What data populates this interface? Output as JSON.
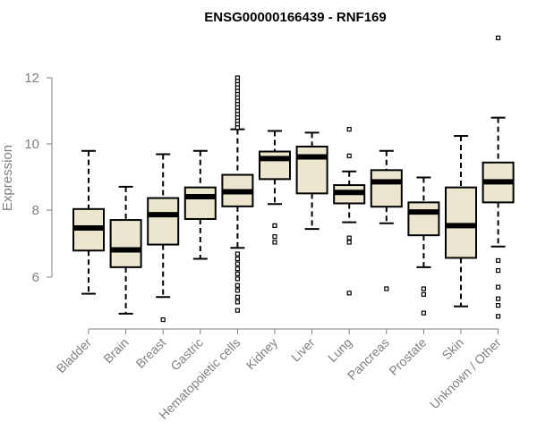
{
  "chart_data": {
    "type": "box",
    "title": "ENSG00000166439 - RNF169",
    "xlabel": "",
    "ylabel": "Expression",
    "ylim": [
      4.4,
      13.4
    ],
    "yticks": [
      "6",
      "8",
      "10",
      "12"
    ],
    "grid": false,
    "box_fill": "#ede6cf",
    "categories": [
      "Bladder",
      "Brain",
      "Breast",
      "Gastric",
      "Hematopoietic cells",
      "Kidney",
      "Liver",
      "Lung",
      "Pancreas",
      "Prostate",
      "Skin",
      "Unknown / Other"
    ],
    "boxes": [
      {
        "min": 5.5,
        "q1": 6.8,
        "median": 7.48,
        "q3": 8.05,
        "max": 9.8,
        "outliers": []
      },
      {
        "min": 4.9,
        "q1": 6.3,
        "median": 6.82,
        "q3": 7.72,
        "max": 8.72,
        "outliers": []
      },
      {
        "min": 5.4,
        "q1": 6.98,
        "median": 7.88,
        "q3": 8.38,
        "max": 9.7,
        "outliers": [
          4.72
        ]
      },
      {
        "min": 6.55,
        "q1": 7.75,
        "median": 8.42,
        "q3": 8.7,
        "max": 9.8,
        "outliers": []
      },
      {
        "min": 6.88,
        "q1": 8.13,
        "median": 8.57,
        "q3": 9.08,
        "max": 10.45,
        "outliers": [
          12.0,
          11.9,
          11.8,
          11.7,
          11.6,
          11.5,
          11.4,
          11.3,
          11.2,
          11.1,
          11.0,
          10.9,
          10.8,
          10.7,
          10.6,
          10.5,
          6.7,
          6.55,
          6.4,
          6.25,
          6.1,
          5.95,
          5.75,
          5.6,
          5.4,
          5.25,
          5.0
        ]
      },
      {
        "min": 8.2,
        "q1": 8.95,
        "median": 9.57,
        "q3": 9.78,
        "max": 10.4,
        "outliers": [
          7.55,
          7.22,
          7.05
        ]
      },
      {
        "min": 7.45,
        "q1": 8.52,
        "median": 9.62,
        "q3": 9.93,
        "max": 10.35,
        "outliers": []
      },
      {
        "min": 7.65,
        "q1": 8.22,
        "median": 8.55,
        "q3": 8.77,
        "max": 9.18,
        "outliers": [
          10.45,
          9.65,
          7.18,
          7.05,
          5.52
        ]
      },
      {
        "min": 7.62,
        "q1": 8.12,
        "median": 8.87,
        "q3": 9.22,
        "max": 9.8,
        "outliers": [
          5.65
        ]
      },
      {
        "min": 6.3,
        "q1": 7.26,
        "median": 7.96,
        "q3": 8.25,
        "max": 9.0,
        "outliers": [
          5.65,
          5.48,
          4.92
        ]
      },
      {
        "min": 5.12,
        "q1": 6.58,
        "median": 7.55,
        "q3": 8.7,
        "max": 10.25,
        "outliers": []
      },
      {
        "min": 6.92,
        "q1": 8.25,
        "median": 8.87,
        "q3": 9.45,
        "max": 10.8,
        "outliers": [
          13.2,
          6.5,
          6.2,
          5.7,
          5.35,
          5.15,
          4.82
        ]
      }
    ]
  }
}
